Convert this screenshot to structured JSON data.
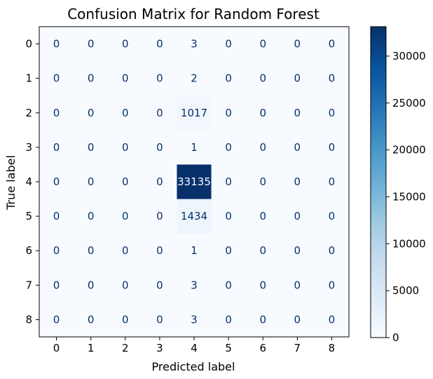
{
  "chart_data": {
    "type": "heatmap",
    "title": "Confusion Matrix for Random Forest",
    "xlabel": "Predicted label",
    "ylabel": "True label",
    "x_categories": [
      "0",
      "1",
      "2",
      "3",
      "4",
      "5",
      "6",
      "7",
      "8"
    ],
    "y_categories": [
      "0",
      "1",
      "2",
      "3",
      "4",
      "5",
      "6",
      "7",
      "8"
    ],
    "values": [
      [
        0,
        0,
        0,
        0,
        3,
        0,
        0,
        0,
        0
      ],
      [
        0,
        0,
        0,
        0,
        2,
        0,
        0,
        0,
        0
      ],
      [
        0,
        0,
        0,
        0,
        1017,
        0,
        0,
        0,
        0
      ],
      [
        0,
        0,
        0,
        0,
        1,
        0,
        0,
        0,
        0
      ],
      [
        0,
        0,
        0,
        0,
        33135,
        0,
        0,
        0,
        0
      ],
      [
        0,
        0,
        0,
        0,
        1434,
        0,
        0,
        0,
        0
      ],
      [
        0,
        0,
        0,
        0,
        1,
        0,
        0,
        0,
        0
      ],
      [
        0,
        0,
        0,
        0,
        3,
        0,
        0,
        0,
        0
      ],
      [
        0,
        0,
        0,
        0,
        3,
        0,
        0,
        0,
        0
      ]
    ],
    "colormap": "Blues",
    "colorbar": {
      "ticks": [
        "0",
        "5000",
        "10000",
        "15000",
        "20000",
        "25000",
        "30000"
      ],
      "range": [
        0,
        33135
      ]
    },
    "colors": {
      "low": "#f7fbff",
      "high": "#08306b",
      "text_dark": "#08306b",
      "text_light": "#f7fbff"
    }
  }
}
